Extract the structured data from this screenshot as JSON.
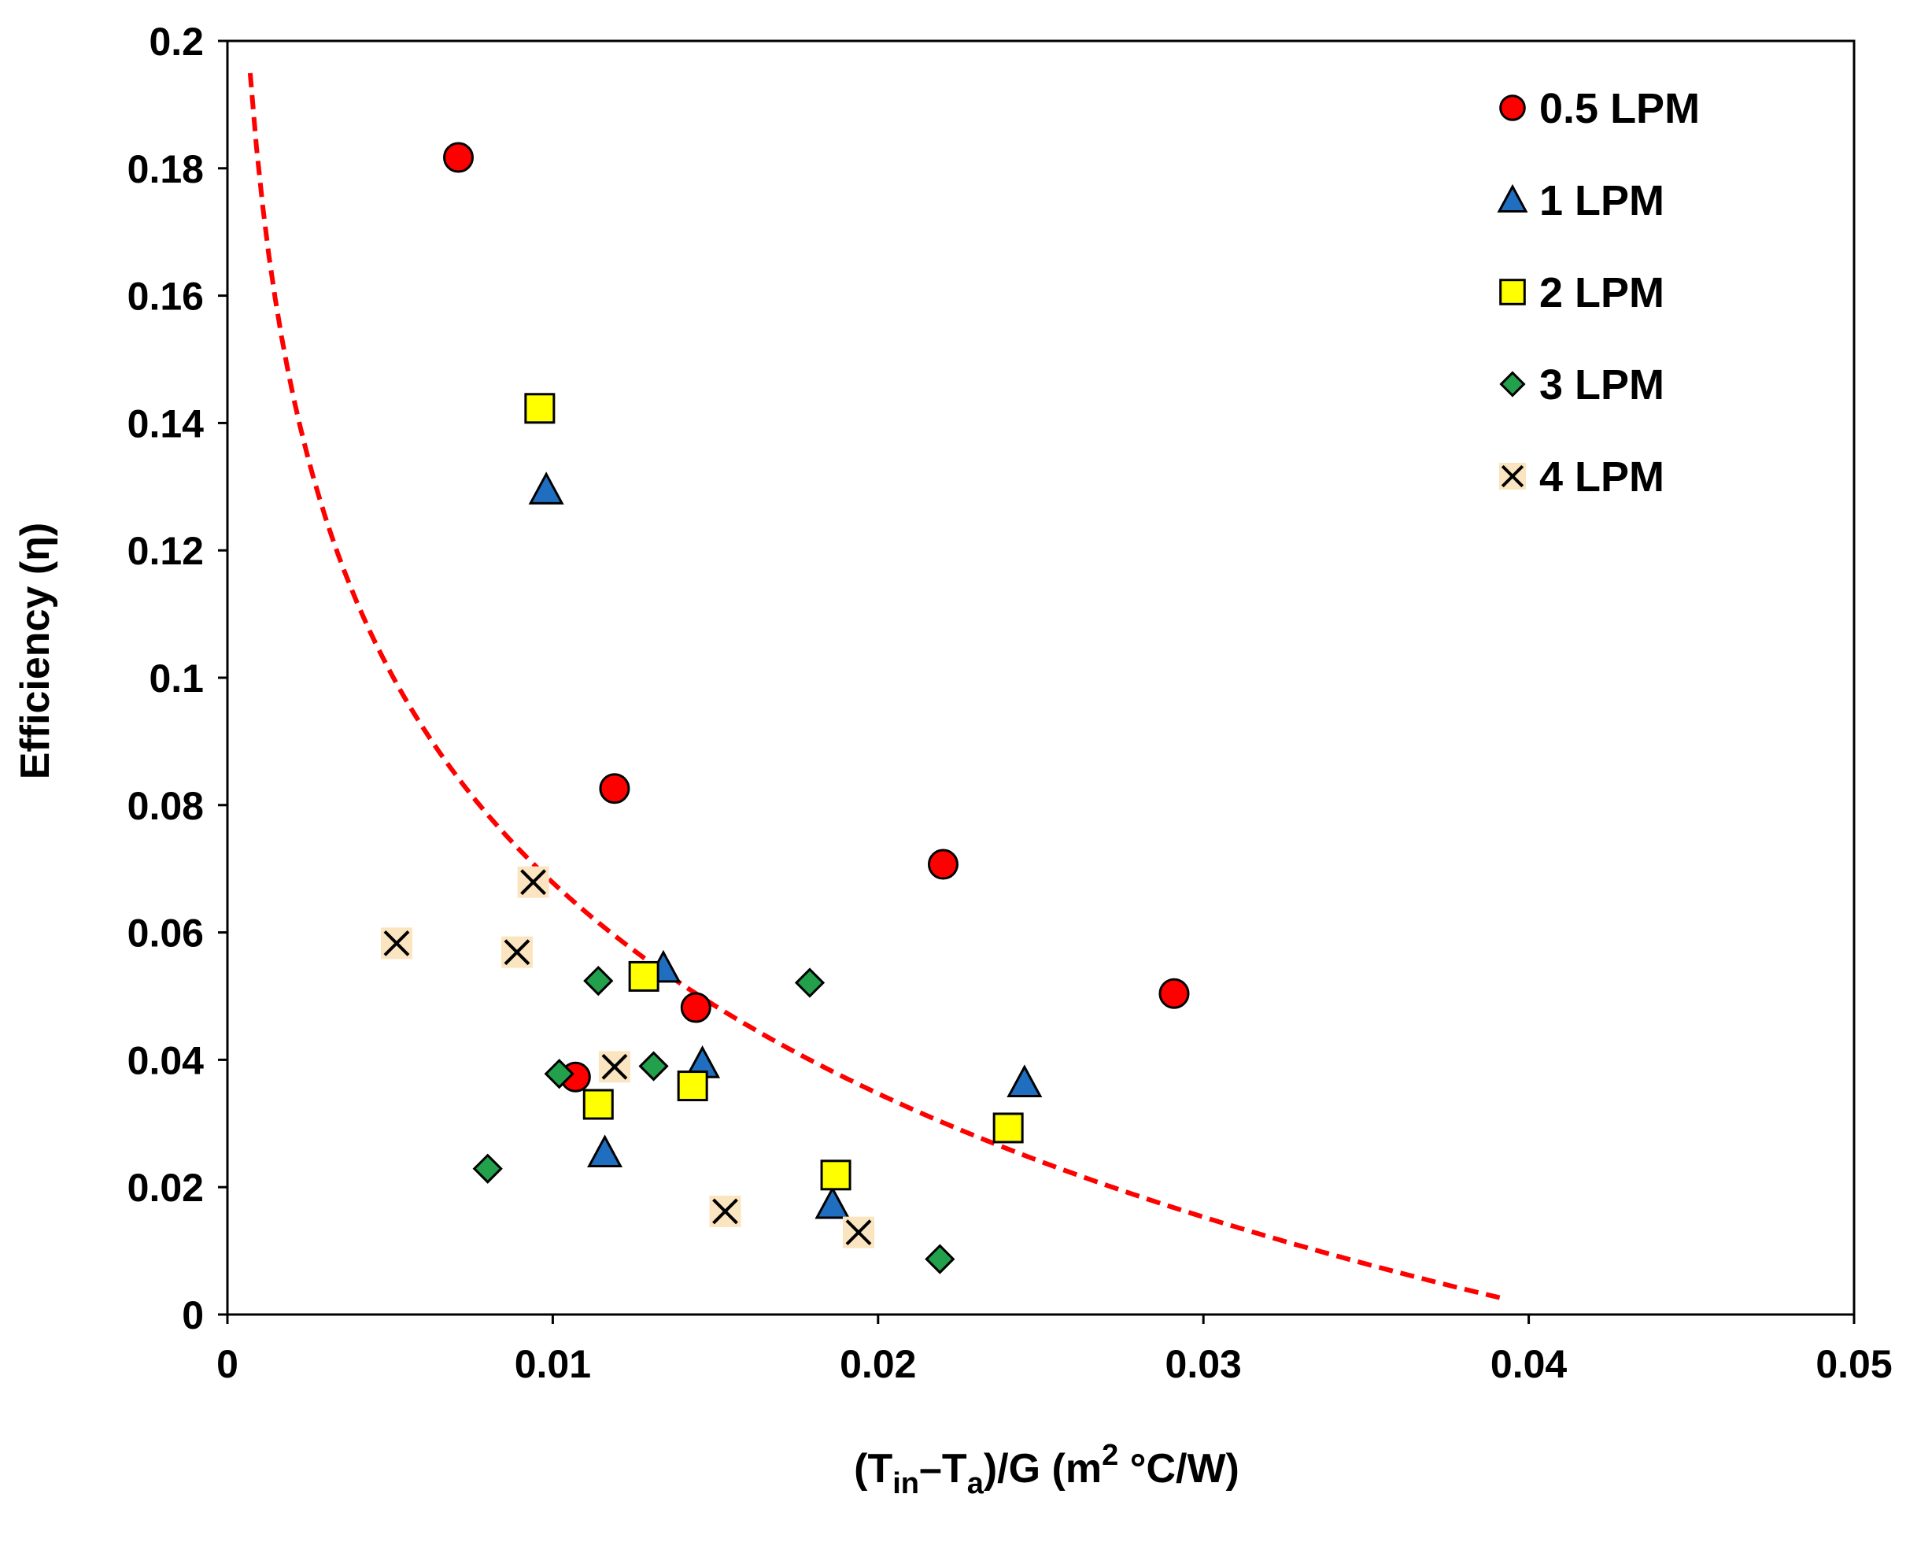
{
  "chart_data": {
    "type": "scatter",
    "title": "",
    "xlabel": {
      "prefix": "(T",
      "sub1": "in",
      "dash": "–T",
      "sub2": "a",
      "mid": ")/G (m",
      "sup": "2",
      "suffix": " °C/W)"
    },
    "ylabel": "Efficiency (η)",
    "xlim": [
      0,
      0.05
    ],
    "ylim": [
      0,
      0.2
    ],
    "x_ticks": [
      {
        "value": 0,
        "label": "0"
      },
      {
        "value": 0.01,
        "label": "0.01"
      },
      {
        "value": 0.02,
        "label": "0.02"
      },
      {
        "value": 0.03,
        "label": "0.03"
      },
      {
        "value": 0.04,
        "label": "0.04"
      },
      {
        "value": 0.05,
        "label": "0.05"
      }
    ],
    "y_ticks": [
      {
        "value": 0,
        "label": "0"
      },
      {
        "value": 0.02,
        "label": "0.02"
      },
      {
        "value": 0.04,
        "label": "0.04"
      },
      {
        "value": 0.06,
        "label": "0.06"
      },
      {
        "value": 0.08,
        "label": "0.08"
      },
      {
        "value": 0.1,
        "label": "0.1"
      },
      {
        "value": 0.12,
        "label": "0.12"
      },
      {
        "value": 0.14,
        "label": "0.14"
      },
      {
        "value": 0.16,
        "label": "0.16"
      },
      {
        "value": 0.18,
        "label": "0.18"
      },
      {
        "value": 0.2,
        "label": "0.2"
      }
    ],
    "grid": false,
    "legend_position": "top-right",
    "series": [
      {
        "name": "0.5 LPM",
        "marker": "circle",
        "fill": "#ff0000",
        "points": [
          [
            0.0071,
            0.1817
          ],
          [
            0.0119,
            0.0826
          ],
          [
            0.022,
            0.0707
          ],
          [
            0.0291,
            0.0504
          ],
          [
            0.0144,
            0.0482
          ],
          [
            0.0107,
            0.0373
          ]
        ]
      },
      {
        "name": "1 LPM",
        "marker": "triangle",
        "fill": "#1f6ebf",
        "points": [
          [
            0.0098,
            0.1295
          ],
          [
            0.0134,
            0.0544
          ],
          [
            0.0146,
            0.0394
          ],
          [
            0.0245,
            0.0364
          ],
          [
            0.0116,
            0.0254
          ],
          [
            0.0186,
            0.0173
          ]
        ]
      },
      {
        "name": "2 LPM",
        "marker": "square",
        "fill": "#ffff00",
        "points": [
          [
            0.0096,
            0.1423
          ],
          [
            0.0128,
            0.0531
          ],
          [
            0.0143,
            0.0359
          ],
          [
            0.0114,
            0.033
          ],
          [
            0.024,
            0.0293
          ],
          [
            0.0187,
            0.0219
          ]
        ]
      },
      {
        "name": "3 LPM",
        "marker": "diamond",
        "fill": "#22a04b",
        "points": [
          [
            0.0114,
            0.0524
          ],
          [
            0.0179,
            0.0521
          ],
          [
            0.0131,
            0.039
          ],
          [
            0.0102,
            0.0378
          ],
          [
            0.008,
            0.0229
          ],
          [
            0.0219,
            0.0087
          ]
        ]
      },
      {
        "name": "4 LPM",
        "marker": "x",
        "fill": "#fbe5c0",
        "points": [
          [
            0.0094,
            0.0679
          ],
          [
            0.0052,
            0.0583
          ],
          [
            0.0089,
            0.0569
          ],
          [
            0.0119,
            0.0389
          ],
          [
            0.0153,
            0.0162
          ],
          [
            0.0194,
            0.0129
          ]
        ]
      }
    ],
    "trendline": {
      "style": "dashed",
      "color": "#ff0000",
      "x_start": 0.0007,
      "x_end": 0.0392,
      "fit": "logarithmic",
      "a": -0.0478,
      "b": -0.1523
    }
  }
}
